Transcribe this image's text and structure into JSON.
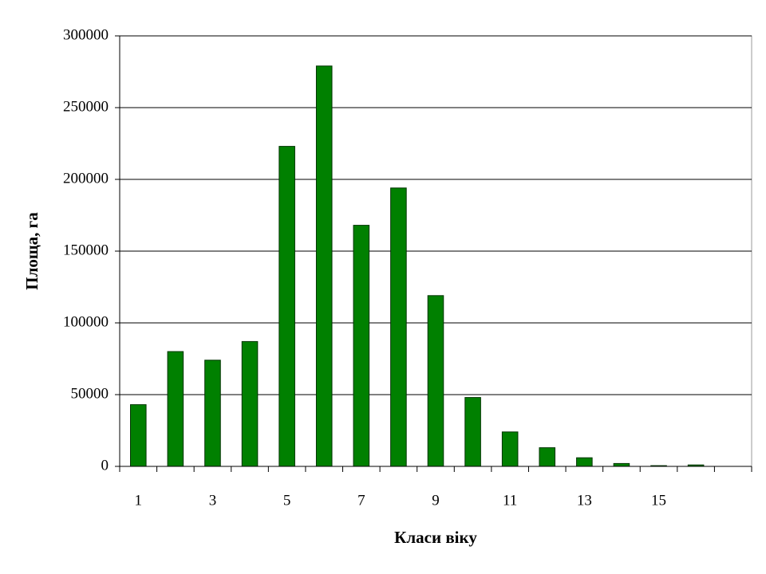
{
  "chart_data": {
    "type": "bar",
    "x_label": "Класи віку",
    "y_label": "Площа, га",
    "categories": [
      "1",
      null,
      "3",
      null,
      "5",
      null,
      "7",
      null,
      "9",
      null,
      "11",
      null,
      "13",
      null,
      "15",
      null,
      null
    ],
    "values": [
      43000,
      80000,
      74000,
      87000,
      223000,
      279000,
      168000,
      194000,
      119000,
      48000,
      24000,
      13000,
      6000,
      2000,
      500,
      1000,
      null
    ],
    "color": "#008000",
    "ylim": [
      0,
      300000
    ],
    "yticks": [
      0,
      50000,
      100000,
      150000,
      200000,
      250000,
      300000
    ],
    "grid": true
  }
}
